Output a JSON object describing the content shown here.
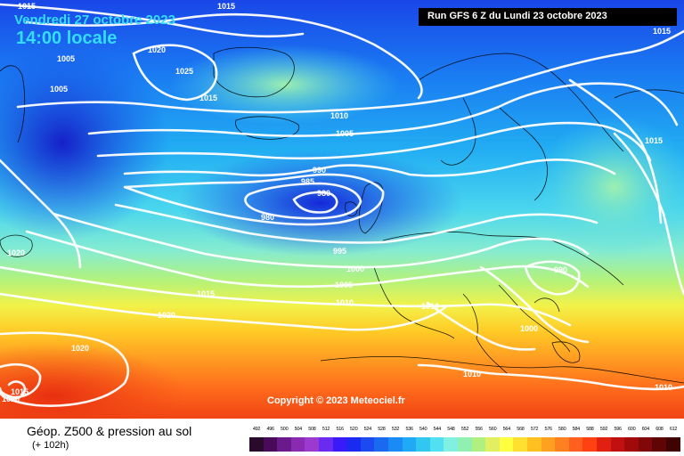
{
  "header": {
    "date_label": "Vendredi 27 octobre 2023",
    "time_label": "14:00 locale",
    "run_label": "Run GFS 6 Z du Lundi 23 octobre 2023"
  },
  "copyright": "Copyright © 2023 Meteociel.fr",
  "footer": {
    "product_title": "Géop. Z500 & pression au sol",
    "forecast_offset": "(+ 102h)"
  },
  "scale": {
    "values": [
      "492",
      "496",
      "500",
      "504",
      "508",
      "512",
      "516",
      "520",
      "524",
      "528",
      "532",
      "536",
      "540",
      "544",
      "548",
      "552",
      "556",
      "560",
      "564",
      "568",
      "572",
      "576",
      "580",
      "584",
      "588",
      "592",
      "596",
      "600",
      "604",
      "608",
      "612"
    ],
    "colors": [
      "#2a0a2a",
      "#4a0a5a",
      "#6a1a8a",
      "#8a2ab0",
      "#9a3ad0",
      "#6a2af0",
      "#3a1af8",
      "#1a2af0",
      "#1a4af0",
      "#1a6af0",
      "#1a8af5",
      "#20aaf5",
      "#30c8f0",
      "#50e0f0",
      "#80f0e0",
      "#90f0b0",
      "#b0f080",
      "#e0f060",
      "#ffff40",
      "#ffe030",
      "#ffc020",
      "#ffa020",
      "#ff8020",
      "#ff6020",
      "#ff4010",
      "#e02010",
      "#c01010",
      "#a00a0a",
      "#800808",
      "#600505",
      "#400303"
    ]
  },
  "isobars": [
    {
      "text": "1015",
      "key": "isobar-1015-a"
    },
    {
      "text": "1015",
      "key": "isobar-1015-b"
    },
    {
      "text": "1015",
      "key": "isobar-1015-c"
    },
    {
      "text": "1005",
      "key": "isobar-1005-a"
    },
    {
      "text": "1005",
      "key": "isobar-1005-b"
    },
    {
      "text": "1020",
      "key": "isobar-1020-a"
    },
    {
      "text": "1025",
      "key": "isobar-1025"
    },
    {
      "text": "1015",
      "key": "isobar-1015-d"
    },
    {
      "text": "1010",
      "key": "isobar-1010-a"
    },
    {
      "text": "1005",
      "key": "isobar-1005-c"
    },
    {
      "text": "1015",
      "key": "isobar-1015-e"
    },
    {
      "text": "990",
      "key": "isobar-990-a"
    },
    {
      "text": "985",
      "key": "isobar-985"
    },
    {
      "text": "980",
      "key": "isobar-980-a"
    },
    {
      "text": "980",
      "key": "isobar-980-b"
    },
    {
      "text": "995",
      "key": "isobar-995"
    },
    {
      "text": "1020",
      "key": "isobar-1020-b"
    },
    {
      "text": "1000",
      "key": "isobar-1000-a"
    },
    {
      "text": "1005",
      "key": "isobar-1005-d"
    },
    {
      "text": "1015",
      "key": "isobar-1015-f"
    },
    {
      "text": "1010",
      "key": "isobar-1010-b"
    },
    {
      "text": "1010",
      "key": "isobar-1010-c"
    },
    {
      "text": "990",
      "key": "isobar-990-b"
    },
    {
      "text": "1020",
      "key": "isobar-1020-c"
    },
    {
      "text": "1000",
      "key": "isobar-1000-b"
    },
    {
      "text": "1020",
      "key": "isobar-1020-d"
    },
    {
      "text": "1010",
      "key": "isobar-1010-d"
    },
    {
      "text": "1015",
      "key": "isobar-1015-g"
    },
    {
      "text": "1010",
      "key": "isobar-1010-e"
    },
    {
      "text": "1010",
      "key": "isobar-1010-f"
    }
  ]
}
